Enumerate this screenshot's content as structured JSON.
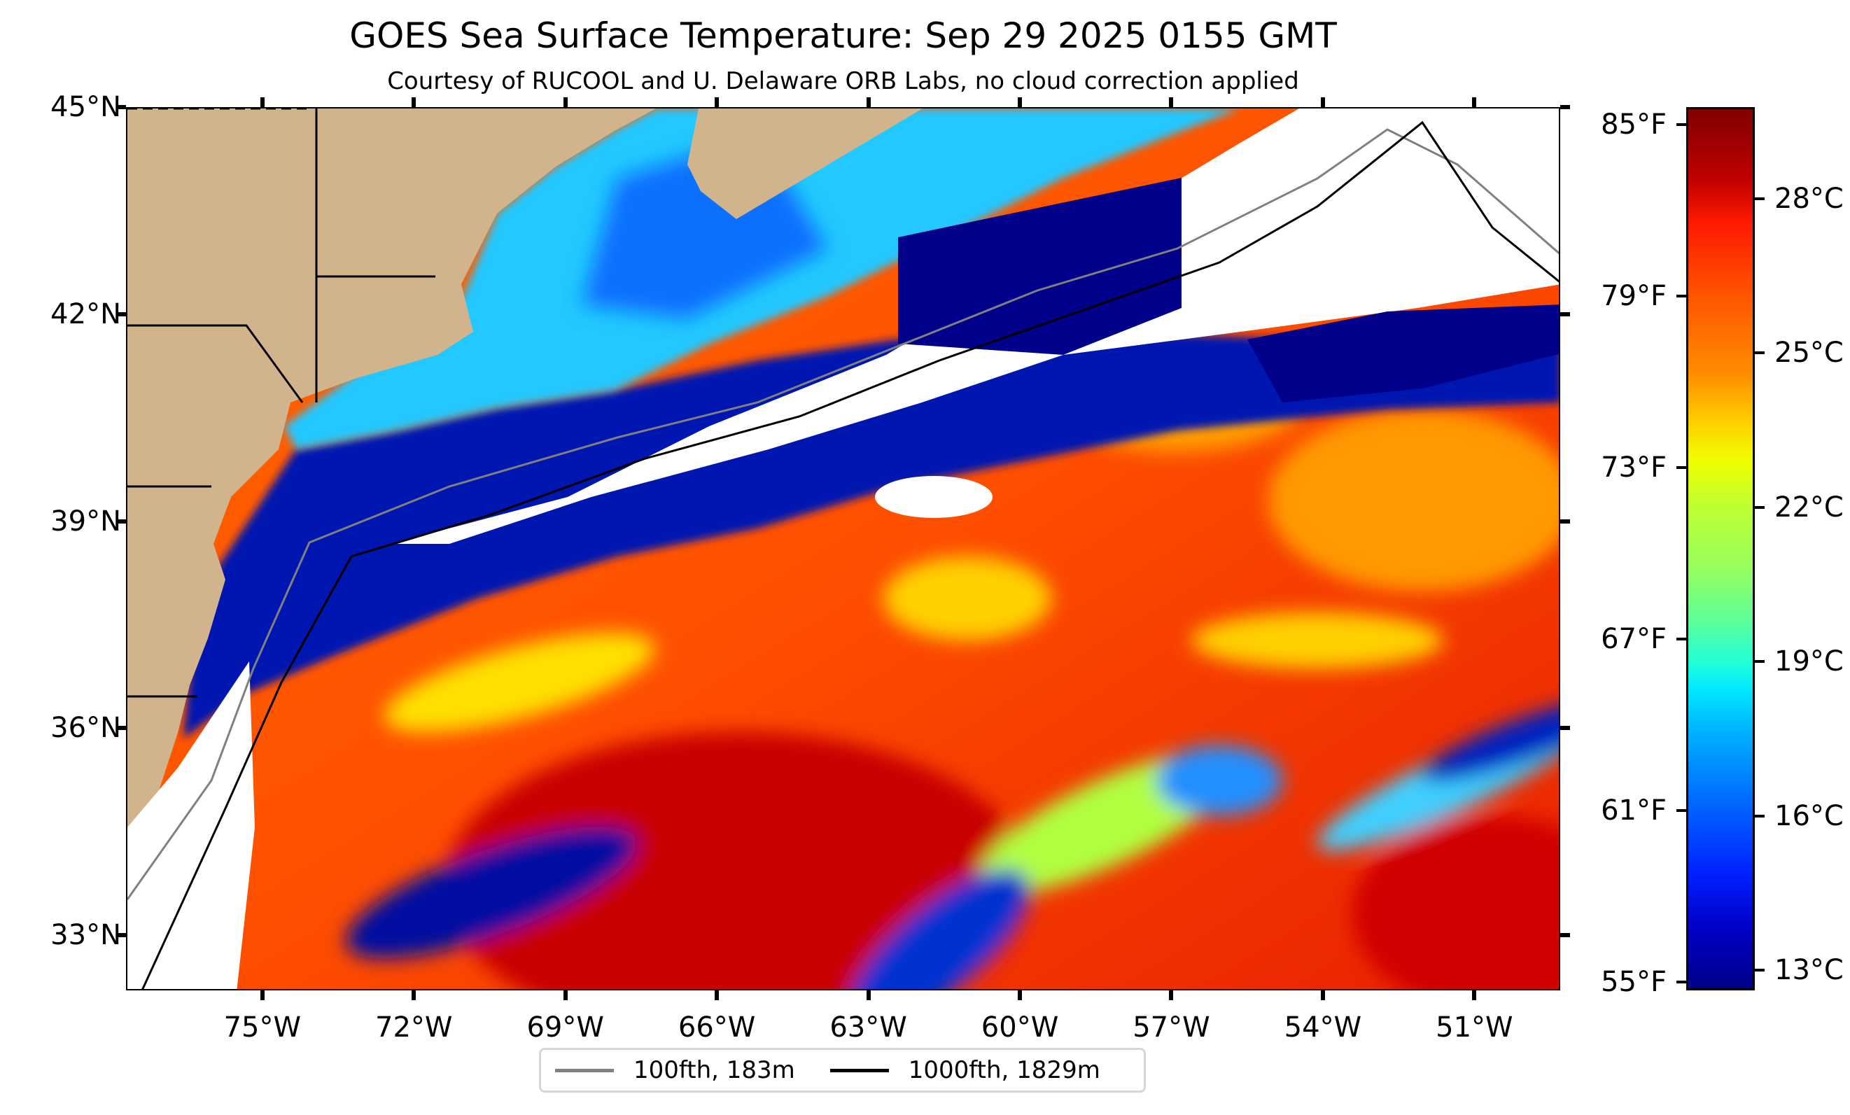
{
  "title": "GOES Sea Surface Temperature: Sep 29 2025 0155 GMT",
  "subtitle": "Courtesy of RUCOOL and U. Delaware ORB Labs, no cloud correction applied",
  "map": {
    "lon_range": [
      -77.7,
      -49.3
    ],
    "lat_range": [
      32.2,
      45.0
    ],
    "lat_ticks": [
      {
        "value": 45,
        "label": "45°N"
      },
      {
        "value": 42,
        "label": "42°N"
      },
      {
        "value": 39,
        "label": "39°N"
      },
      {
        "value": 36,
        "label": "36°N"
      },
      {
        "value": 33,
        "label": "33°N"
      }
    ],
    "lon_ticks": [
      {
        "value": -75,
        "label": "75°W"
      },
      {
        "value": -72,
        "label": "72°W"
      },
      {
        "value": -69,
        "label": "69°W"
      },
      {
        "value": -66,
        "label": "66°W"
      },
      {
        "value": -63,
        "label": "63°W"
      },
      {
        "value": -60,
        "label": "60°W"
      },
      {
        "value": -57,
        "label": "57°W"
      },
      {
        "value": -54,
        "label": "54°W"
      },
      {
        "value": -51,
        "label": "51°W"
      }
    ],
    "colors": {
      "land": "#d2b48c",
      "cloud": "#ffffff",
      "state_lines": "#000000",
      "rivers": "#8fb0e8"
    }
  },
  "colorbar": {
    "range_f": [
      54.7,
      85.6
    ],
    "fahrenheit_ticks": [
      {
        "value": 85,
        "label": "85°F"
      },
      {
        "value": 79,
        "label": "79°F"
      },
      {
        "value": 73,
        "label": "73°F"
      },
      {
        "value": 67,
        "label": "67°F"
      },
      {
        "value": 61,
        "label": "61°F"
      },
      {
        "value": 55,
        "label": "55°F"
      }
    ],
    "celsius_ticks": [
      {
        "value": 28,
        "label": "28°C"
      },
      {
        "value": 25,
        "label": "25°C"
      },
      {
        "value": 22,
        "label": "22°C"
      },
      {
        "value": 19,
        "label": "19°C"
      },
      {
        "value": 16,
        "label": "16°C"
      },
      {
        "value": 13,
        "label": "13°C"
      }
    ],
    "colormap": "jet"
  },
  "legend": {
    "items": [
      {
        "label": "100fth, 183m",
        "color": "#808080"
      },
      {
        "label": "1000fth, 1829m",
        "color": "#000000"
      }
    ]
  }
}
